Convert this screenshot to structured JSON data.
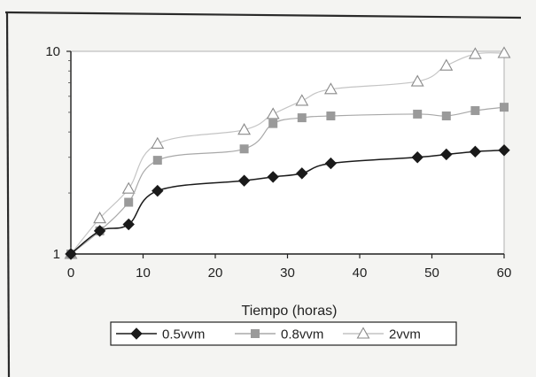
{
  "chart_data": {
    "type": "line",
    "title": "",
    "xlabel": "Tiempo (horas)",
    "ylabel": "",
    "xlim": [
      0,
      60
    ],
    "ylim": [
      1,
      10
    ],
    "y_scale": "log",
    "x_ticks": [
      0,
      10,
      20,
      30,
      40,
      50,
      60
    ],
    "y_ticks": [
      1,
      10
    ],
    "grid": false,
    "legend_position": "bottom",
    "series": [
      {
        "name": "0.5vvm",
        "marker": "diamond",
        "color": "#1a1a1a",
        "x": [
          0,
          4,
          8,
          12,
          24,
          28,
          32,
          36,
          48,
          52,
          56,
          60
        ],
        "y": [
          1.0,
          1.3,
          1.4,
          2.05,
          2.3,
          2.4,
          2.5,
          2.8,
          3.0,
          3.1,
          3.2,
          3.25
        ]
      },
      {
        "name": "0.8vvm",
        "marker": "square",
        "color": "#9a9a9a",
        "x": [
          0,
          4,
          8,
          12,
          24,
          28,
          32,
          36,
          48,
          52,
          56,
          60
        ],
        "y": [
          1.0,
          1.3,
          1.8,
          2.9,
          3.3,
          4.4,
          4.7,
          4.8,
          4.9,
          4.8,
          5.1,
          5.3
        ]
      },
      {
        "name": "2vvm",
        "marker": "triangle",
        "color": "#b8b8b8",
        "x": [
          0,
          4,
          8,
          12,
          24,
          28,
          32,
          36,
          48,
          52,
          56,
          60
        ],
        "y": [
          1.0,
          1.5,
          2.1,
          3.5,
          4.1,
          4.9,
          5.7,
          6.5,
          7.1,
          8.5,
          9.7,
          9.8
        ]
      }
    ]
  }
}
